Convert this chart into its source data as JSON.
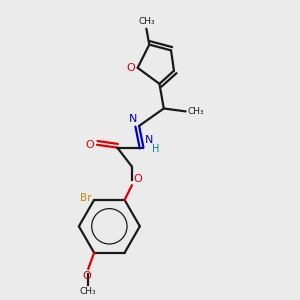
{
  "background_color": "#ebebeb",
  "bond_color": "#1a1a1a",
  "oxygen_color": "#dd0000",
  "nitrogen_color": "#0000cc",
  "bromine_color": "#cc8800",
  "teal_color": "#008080",
  "figsize": [
    3.0,
    3.0
  ],
  "dpi": 100,
  "xlim": [
    0,
    10
  ],
  "ylim": [
    0,
    10
  ]
}
